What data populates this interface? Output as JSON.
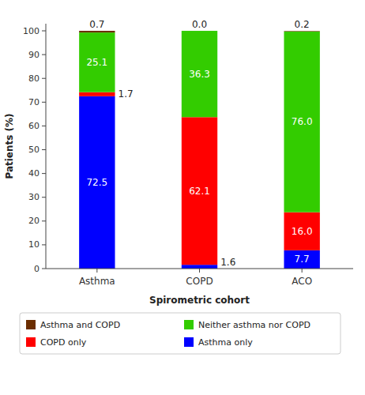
{
  "chart_data": {
    "type": "bar",
    "stacked": true,
    "categories": [
      "Asthma",
      "COPD",
      "ACO"
    ],
    "series": [
      {
        "name": "Asthma only",
        "color": "#0000ff",
        "values": [
          72.5,
          1.6,
          7.7
        ]
      },
      {
        "name": "COPD only",
        "color": "#ff0000",
        "values": [
          1.7,
          62.1,
          16.0
        ],
        "value_labels": [
          "1.7",
          "62.1",
          "16.0"
        ]
      },
      {
        "name": "Neither asthma nor COPD",
        "color": "#33cc00",
        "values": [
          25.1,
          36.3,
          76.0
        ],
        "value_labels": [
          "25.1",
          "36.3",
          "76.0"
        ]
      },
      {
        "name": "Asthma and COPD",
        "color": "#6b2d00",
        "values": [
          0.7,
          0.0,
          0.2
        ],
        "value_labels": [
          "0.7",
          "0.0",
          "0.2"
        ]
      }
    ],
    "xlabel": "Spirometric cohort",
    "ylabel": "Patients (%)",
    "ylim": [
      0,
      103
    ],
    "yticks": [
      0,
      10,
      20,
      30,
      40,
      50,
      60,
      70,
      80,
      90,
      100
    ],
    "grid": false,
    "legend": "bottom",
    "data_labels": true
  }
}
